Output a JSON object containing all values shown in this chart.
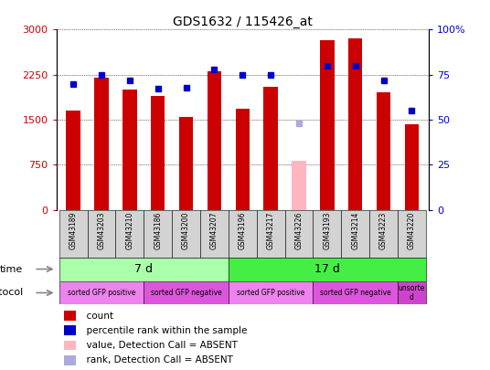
{
  "title": "GDS1632 / 115426_at",
  "samples": [
    "GSM43189",
    "GSM43203",
    "GSM43210",
    "GSM43186",
    "GSM43200",
    "GSM43207",
    "GSM43196",
    "GSM43217",
    "GSM43226",
    "GSM43193",
    "GSM43214",
    "GSM43223",
    "GSM43220"
  ],
  "counts": [
    1650,
    2200,
    2000,
    1900,
    1540,
    2300,
    1680,
    2050,
    820,
    2820,
    2860,
    1950,
    1430
  ],
  "absent_flags": [
    false,
    false,
    false,
    false,
    false,
    false,
    false,
    false,
    true,
    false,
    false,
    false,
    false
  ],
  "percentile_ranks": [
    70,
    75,
    72,
    67,
    68,
    78,
    75,
    75,
    48,
    80,
    80,
    72,
    55
  ],
  "ylim_left": [
    0,
    3000
  ],
  "ylim_right": [
    0,
    100
  ],
  "yticks_left": [
    0,
    750,
    1500,
    2250,
    3000
  ],
  "yticks_right": [
    0,
    25,
    50,
    75,
    100
  ],
  "time_groups": [
    {
      "label": "7 d",
      "start": 0,
      "end": 6,
      "color": "#aaffaa"
    },
    {
      "label": "17 d",
      "start": 6,
      "end": 13,
      "color": "#44ee44"
    }
  ],
  "protocol_groups": [
    {
      "label": "sorted GFP positive",
      "start": 0,
      "end": 3,
      "color": "#ee82ee"
    },
    {
      "label": "sorted GFP negative",
      "start": 3,
      "end": 6,
      "color": "#dd55dd"
    },
    {
      "label": "sorted GFP positive",
      "start": 6,
      "end": 9,
      "color": "#ee82ee"
    },
    {
      "label": "sorted GFP negative",
      "start": 9,
      "end": 12,
      "color": "#dd55dd"
    },
    {
      "label": "unsorte\nd",
      "start": 12,
      "end": 13,
      "color": "#cc44cc"
    }
  ],
  "bar_color": "#cc0000",
  "bar_absent_color": "#ffb6c1",
  "rank_color": "#0000cc",
  "rank_absent_color": "#aaaadd",
  "sample_bg_color": "#d3d3d3",
  "tick_color_left": "#cc0000",
  "tick_color_right": "#0000cc",
  "bar_width": 0.5
}
